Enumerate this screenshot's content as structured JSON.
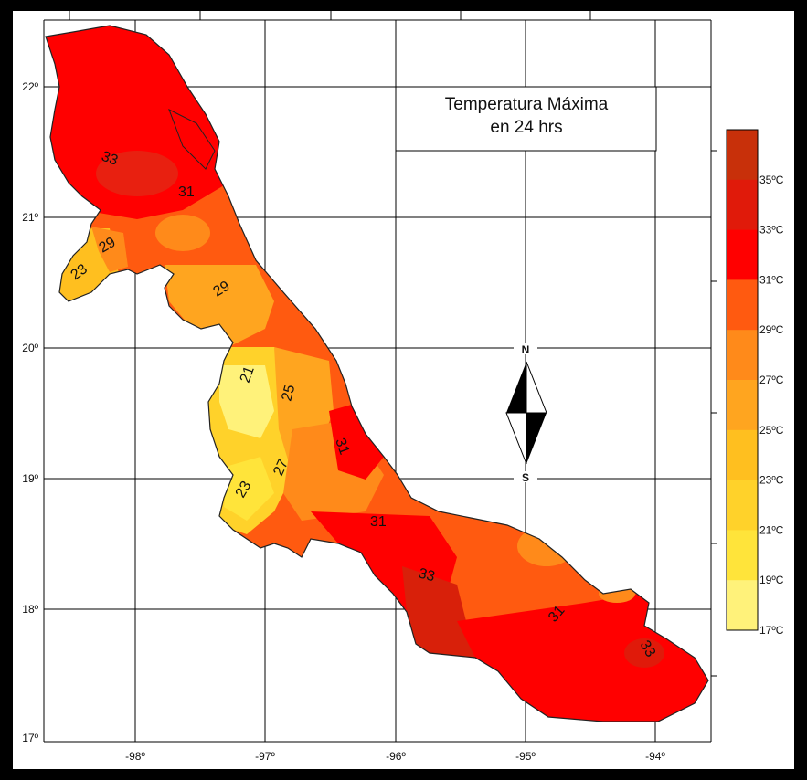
{
  "title": {
    "line1": "Temperatura Máxima",
    "line2": "en 24 hrs"
  },
  "compass": {
    "north": "N",
    "south": "S"
  },
  "axes": {
    "lon_ticks": [
      "-98º",
      "-97º",
      "-96º",
      "-95º",
      "-94º"
    ],
    "lat_ticks": [
      "22º",
      "21º",
      "20º",
      "19º",
      "18º",
      "17º"
    ]
  },
  "legend": {
    "bins": [
      {
        "label": "35ºC",
        "color": "#c8300a"
      },
      {
        "label": "33ºC",
        "color": "#e01a0a"
      },
      {
        "label": "31ºC",
        "color": "#ff0000"
      },
      {
        "label": "29ºC",
        "color": "#ff5a10"
      },
      {
        "label": "27ºC",
        "color": "#ff8a1a"
      },
      {
        "label": "25ºC",
        "color": "#ffa51f"
      },
      {
        "label": "23ºC",
        "color": "#ffbf1f"
      },
      {
        "label": "21ºC",
        "color": "#ffd22a"
      },
      {
        "label": "19ºC",
        "color": "#ffe43a"
      },
      {
        "label": "17ºC",
        "color": "#fff27a"
      }
    ]
  },
  "contour_labels": [
    "33",
    "31",
    "29",
    "23",
    "29",
    "21",
    "25",
    "31",
    "27",
    "23",
    "31",
    "33",
    "31",
    "33"
  ]
}
